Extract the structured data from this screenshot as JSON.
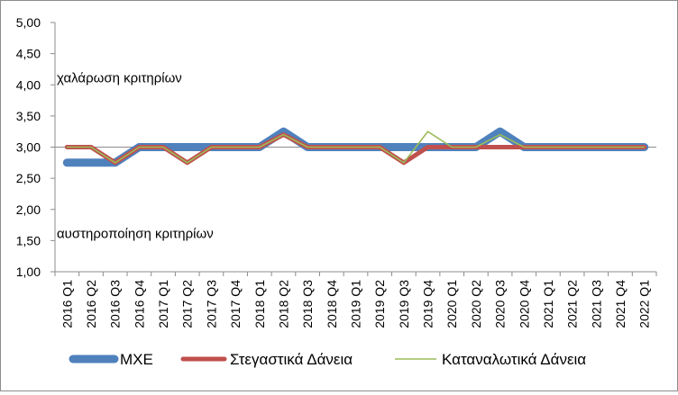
{
  "chart_data": {
    "type": "line",
    "title": "",
    "xlabel": "",
    "ylabel": "",
    "ylim": [
      1.0,
      5.0
    ],
    "ytick_step": 0.5,
    "y_tick_labels": [
      "1,00",
      "1,50",
      "2,00",
      "2,50",
      "3,00",
      "3,50",
      "4,00",
      "4,50",
      "5,00"
    ],
    "grid": "horizontal-line-at-3.00",
    "legend_position": "bottom",
    "categories": [
      "2016 Q1",
      "2016 Q2",
      "2016 Q3",
      "2016 Q4",
      "2017 Q1",
      "2017 Q2",
      "2017 Q3",
      "2017 Q4",
      "2018 Q1",
      "2018 Q2",
      "2018 Q3",
      "2018 Q4",
      "2019 Q1",
      "2019 Q2",
      "2019 Q3",
      "2019 Q4",
      "2020 Q1",
      "2020 Q2",
      "2020 Q3",
      "2020 Q4",
      "2021 Q1",
      "2021 Q2",
      "2021 Q3",
      "2021 Q4",
      "2022 Q1"
    ],
    "series": [
      {
        "name": "ΜΧΕ",
        "color": "#4f81bd",
        "values": [
          2.75,
          2.75,
          2.75,
          3.0,
          3.0,
          3.0,
          3.0,
          3.0,
          3.0,
          3.25,
          3.0,
          3.0,
          3.0,
          3.0,
          3.0,
          3.0,
          3.0,
          3.0,
          3.25,
          3.0,
          3.0,
          3.0,
          3.0,
          3.0,
          3.0
        ]
      },
      {
        "name": "Στεγαστικά Δάνεια",
        "color": "#c0504d",
        "values": [
          3.0,
          3.0,
          2.75,
          3.0,
          3.0,
          2.75,
          3.0,
          3.0,
          3.0,
          3.2,
          3.0,
          3.0,
          3.0,
          3.0,
          2.75,
          3.0,
          3.0,
          3.0,
          3.0,
          3.0,
          3.0,
          3.0,
          3.0,
          3.0,
          3.0
        ]
      },
      {
        "name": "Καταναλωτικά Δάνεια",
        "color": "#9bbb59",
        "values": [
          3.0,
          3.0,
          2.75,
          3.0,
          3.0,
          2.75,
          3.0,
          3.0,
          3.0,
          3.2,
          3.0,
          3.0,
          3.0,
          3.0,
          2.75,
          3.25,
          3.0,
          3.0,
          3.2,
          3.0,
          3.0,
          3.0,
          3.0,
          3.0,
          3.0
        ]
      }
    ],
    "annotations": [
      {
        "text": "χαλάρωση κριτηρίων",
        "y": 4.0
      },
      {
        "text": "αυστηροποίηση κριτηρίων",
        "y": 1.5
      }
    ]
  }
}
